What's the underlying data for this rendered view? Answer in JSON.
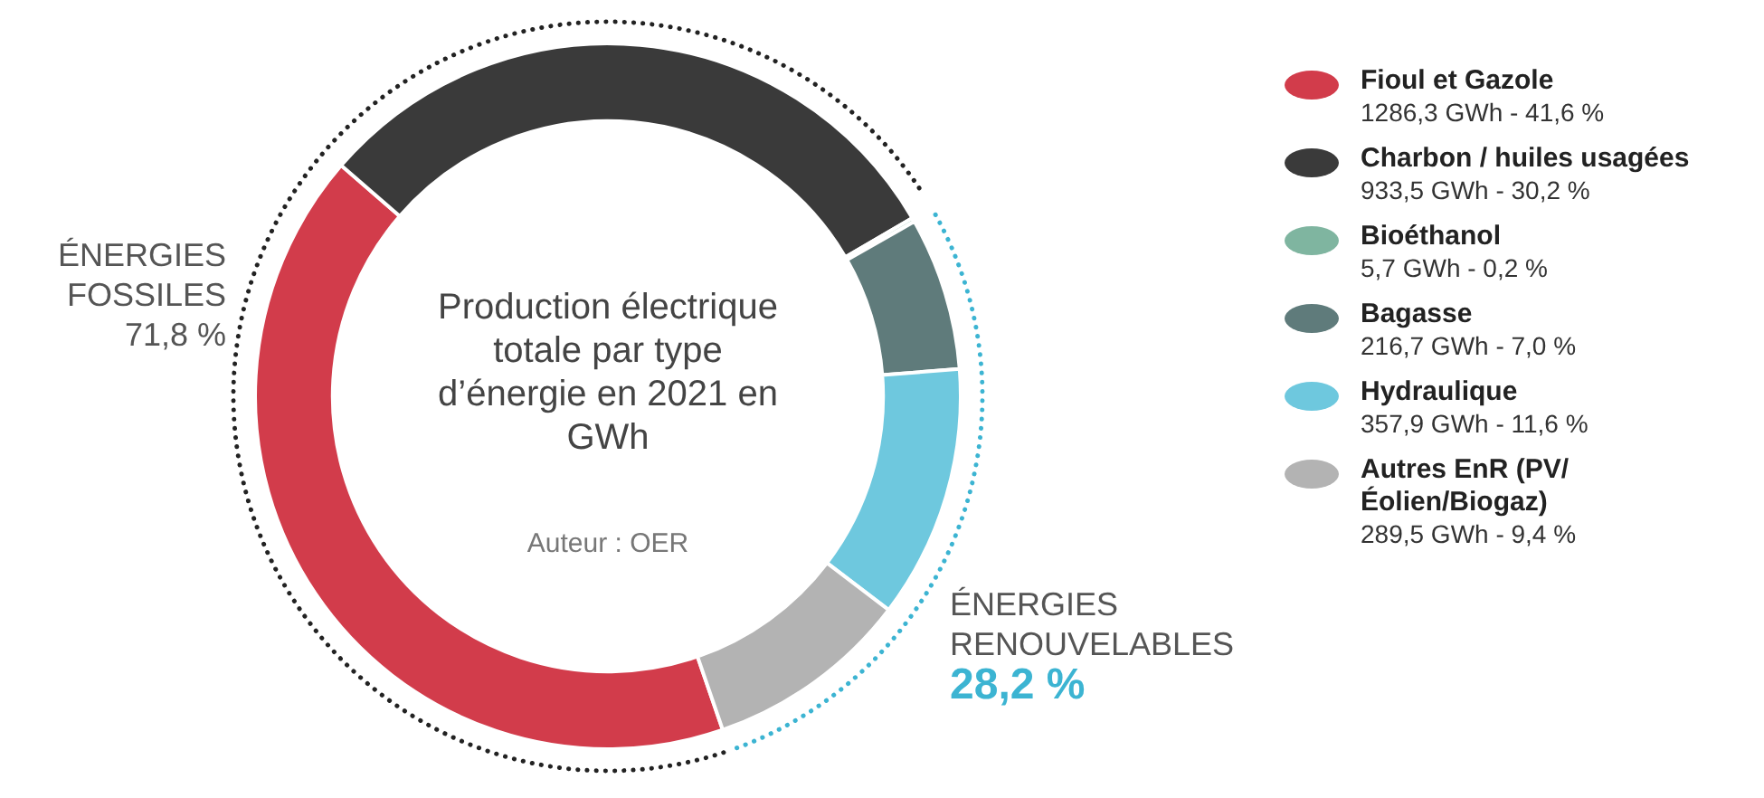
{
  "chart_data": {
    "type": "donut",
    "title": "Production électrique totale par type d’énergie en 2021 en GWh",
    "categories": [
      "Fioul et Gazole",
      "Charbon / huiles usagées",
      "Bioéthanol",
      "Bagasse",
      "Hydraulique",
      "Autres EnR (PV/Éolien/Biogaz)"
    ],
    "values": [
      1286.3,
      933.5,
      5.7,
      216.7,
      357.9,
      289.5
    ],
    "value_labels": [
      "1286,3 GWh - 41,6 %",
      "933,5 GWh - 30,2 %",
      "5,7 GWh - 0,2 %",
      "216,7 GWh - 7,0 %",
      "357,9 GWh - 11,6 %",
      "289,5 GWh - 9,4 %"
    ],
    "colors": [
      "#d23c4b",
      "#3a3a3a",
      "#7fb5a0",
      "#5f7b7b",
      "#6ec8de",
      "#b3b3b3"
    ],
    "legend": "right",
    "annotations": [
      "ÉNERGIES FOSSILES",
      "71,8 %",
      "ÉNERGIES RENOUVELABLES",
      "28,2 %",
      "Auteur : OER"
    ]
  }
}
